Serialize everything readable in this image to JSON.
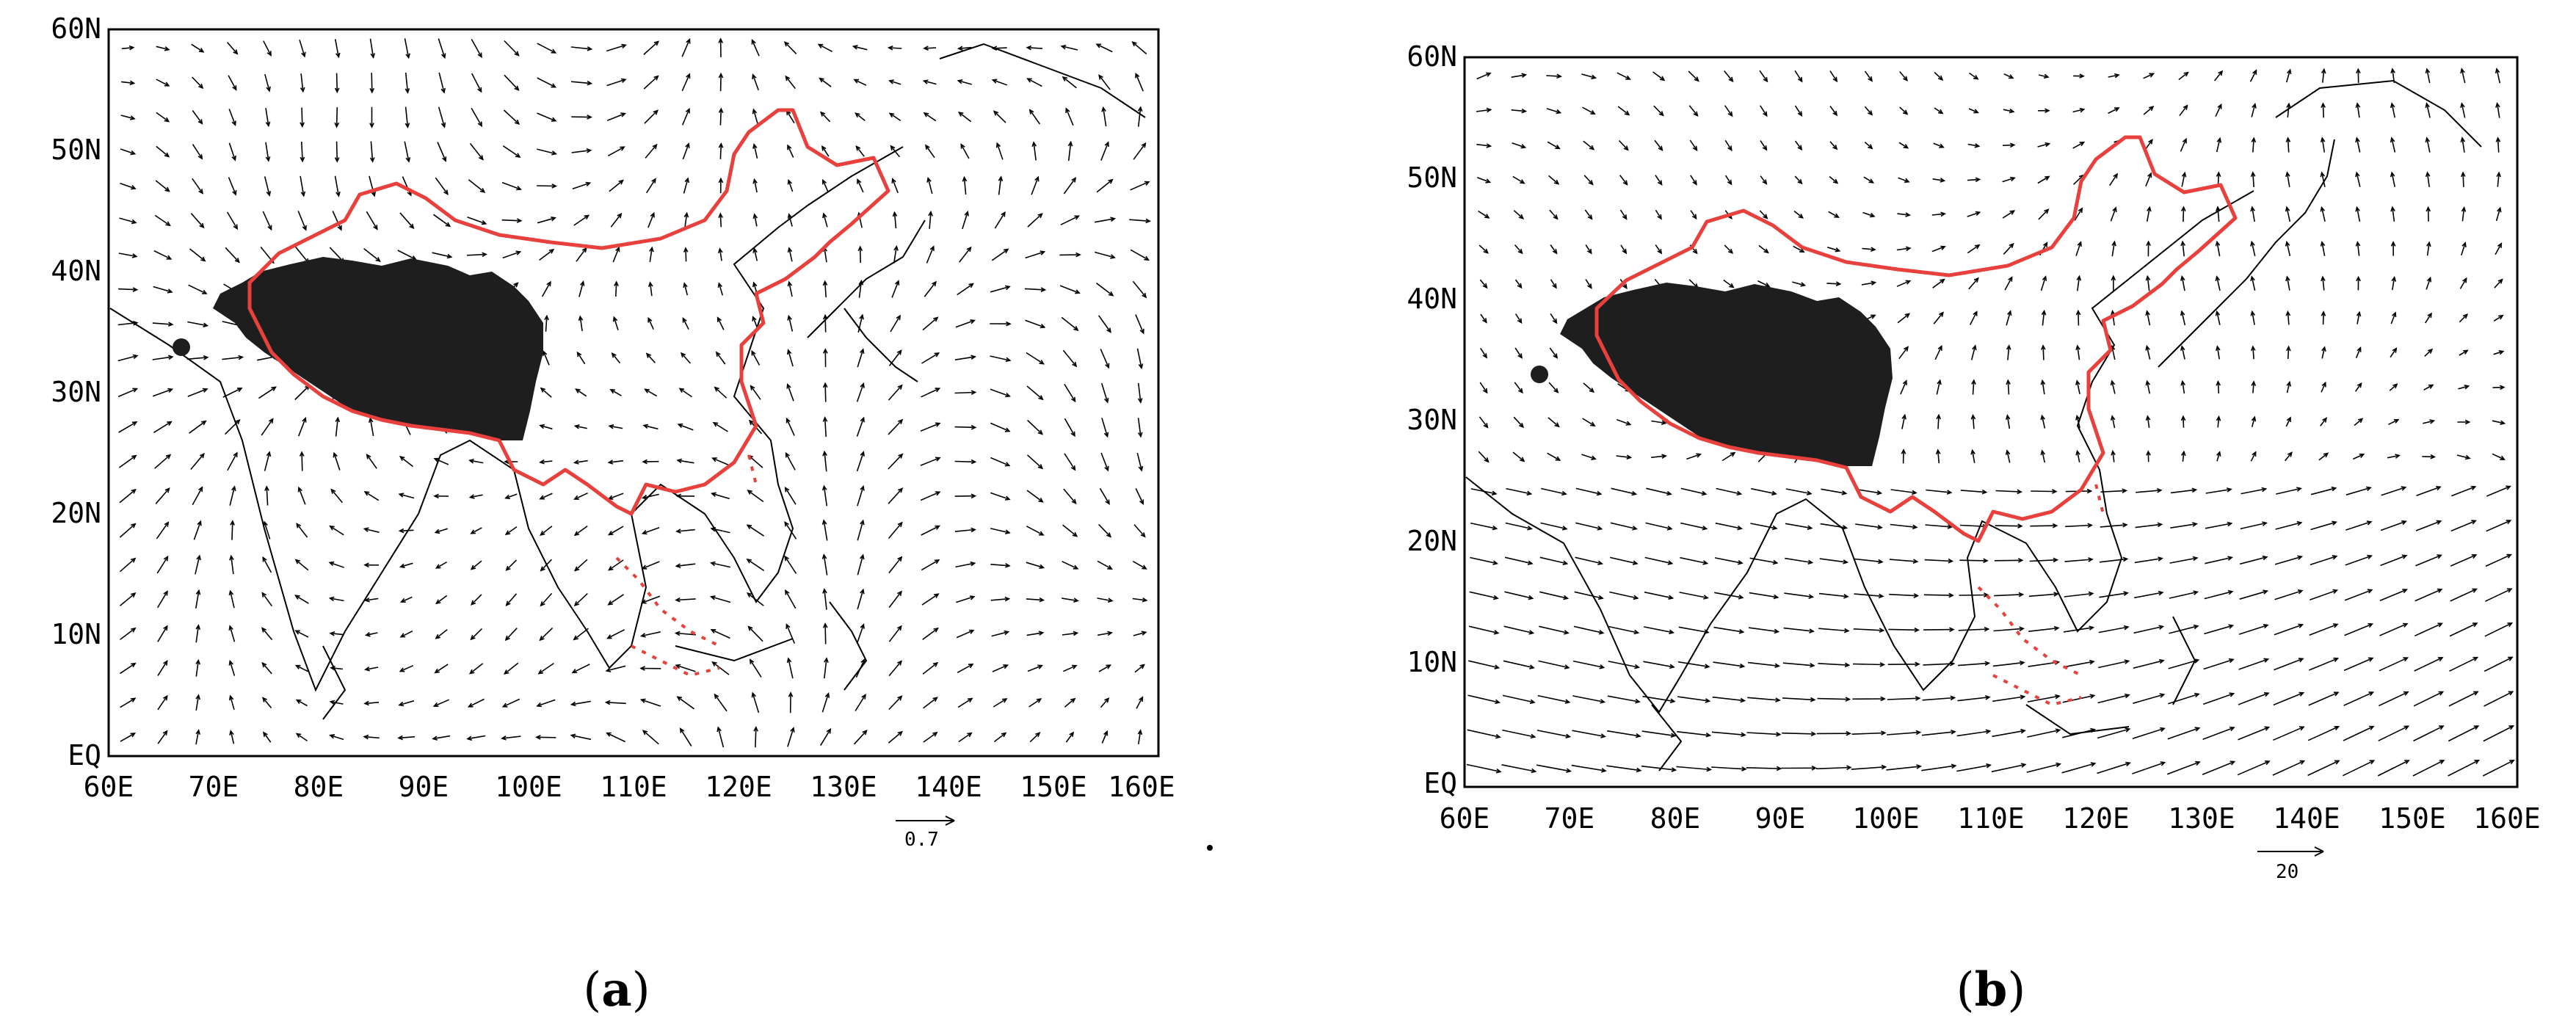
{
  "panels": [
    {
      "id": "a",
      "caption_open": "(",
      "caption_letter": "a",
      "caption_close": ")",
      "reference_vector": "0.7",
      "y_tick_labels": [
        "60N",
        "50N",
        "40N",
        "30N",
        "20N",
        "10N",
        "EQ"
      ],
      "x_tick_labels": [
        "60E",
        "70E",
        "80E",
        "90E",
        "100E",
        "110E",
        "120E",
        "130E",
        "140E",
        "150E",
        "160E"
      ],
      "extent": {
        "lon": [
          60,
          160
        ],
        "lat": [
          0,
          60
        ]
      }
    },
    {
      "id": "b",
      "caption_open": "(",
      "caption_letter": "b",
      "caption_close": ")",
      "reference_vector": "20",
      "y_tick_labels": [
        "60N",
        "50N",
        "40N",
        "30N",
        "20N",
        "10N",
        "EQ"
      ],
      "x_tick_labels": [
        "60E",
        "70E",
        "80E",
        "90E",
        "100E",
        "110E",
        "120E",
        "130E",
        "140E",
        "150E",
        "160E"
      ],
      "extent": {
        "lon": [
          60,
          160
        ],
        "lat": [
          0,
          60
        ]
      }
    }
  ],
  "colors": {
    "border": "#e8403c",
    "plateau": "#1e1e1e",
    "coast": "#000000",
    "vectors": "#000000"
  }
}
